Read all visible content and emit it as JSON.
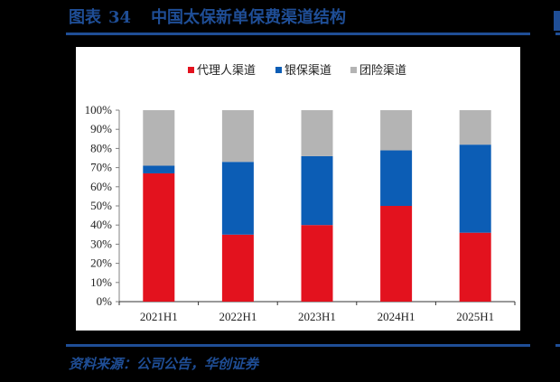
{
  "figure": {
    "label": "图表",
    "number": "34",
    "title": "中国太保新单保费渠道结构",
    "source": "资料来源：公司公告，华创证券",
    "accent_color": "#1F4E96"
  },
  "chart_data": {
    "type": "bar",
    "stacked": true,
    "percent": true,
    "title": "中国太保新单保费渠道结构",
    "categories": [
      "2021H1",
      "2022H1",
      "2023H1",
      "2024H1",
      "2025H1"
    ],
    "series": [
      {
        "name": "代理人渠道",
        "color": "#E3121E",
        "values": [
          67,
          35,
          40,
          50,
          36
        ]
      },
      {
        "name": "银保渠道",
        "color": "#0C5DB5",
        "values": [
          4,
          38,
          36,
          29,
          46
        ]
      },
      {
        "name": "团险渠道",
        "color": "#B4B4B4",
        "values": [
          29,
          27,
          24,
          21,
          18
        ]
      }
    ],
    "xlabel": "",
    "ylabel": "",
    "ylim": [
      0,
      100
    ],
    "yticks": [
      "0%",
      "10%",
      "20%",
      "30%",
      "40%",
      "50%",
      "60%",
      "70%",
      "80%",
      "90%",
      "100%"
    ],
    "grid": false,
    "legend_position": "top"
  }
}
